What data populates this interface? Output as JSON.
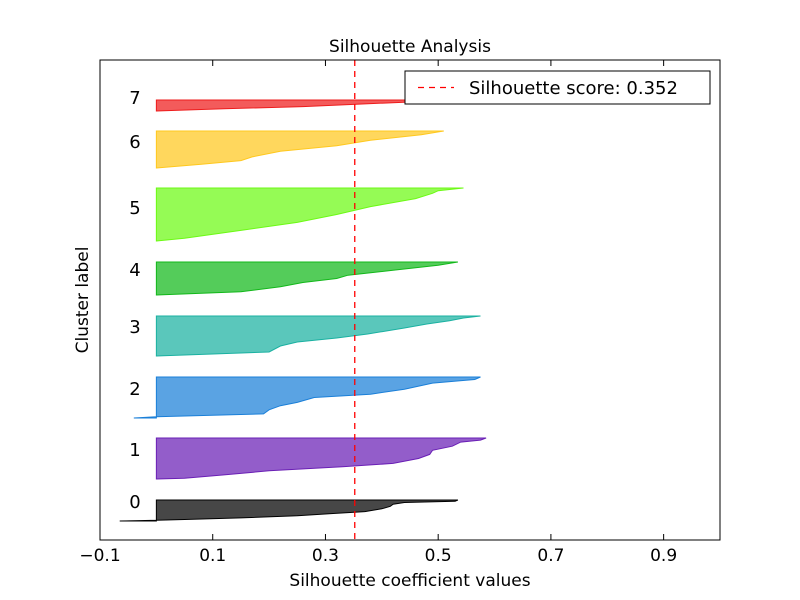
{
  "chart_data": {
    "type": "area",
    "title": "Silhouette Analysis",
    "xlabel": "Silhouette coefficient values",
    "ylabel": "Cluster label",
    "xlim": [
      -0.1,
      1.0
    ],
    "xticks": [
      -0.1,
      0.1,
      0.3,
      0.5,
      0.7,
      0.9
    ],
    "xtick_labels": [
      "−0.1",
      "0.1",
      "0.3",
      "0.5",
      "0.7",
      "0.9"
    ],
    "grid": false,
    "legend_position": "top-right",
    "silhouette_score": 0.352,
    "score_line": {
      "label": "Silhouette score: 0.352",
      "color": "#ff0000",
      "style": "dashed"
    },
    "clusters": [
      {
        "label": "0",
        "color": "#000000",
        "values_desc": [
          [
            0.0,
            0.535
          ],
          [
            0.06,
            0.53
          ],
          [
            0.12,
            0.44
          ],
          [
            0.2,
            0.42
          ],
          [
            0.3,
            0.415
          ],
          [
            0.42,
            0.4
          ],
          [
            0.55,
            0.37
          ],
          [
            0.65,
            0.31
          ],
          [
            0.75,
            0.25
          ],
          [
            0.85,
            0.15
          ],
          [
            0.93,
            0.05
          ],
          [
            0.96,
            0.0
          ],
          [
            0.98,
            -0.03
          ],
          [
            1.0,
            -0.065
          ]
        ]
      },
      {
        "label": "1",
        "color": "#6a1fb5",
        "values_desc": [
          [
            0.0,
            0.585
          ],
          [
            0.05,
            0.575
          ],
          [
            0.1,
            0.54
          ],
          [
            0.2,
            0.525
          ],
          [
            0.3,
            0.49
          ],
          [
            0.4,
            0.485
          ],
          [
            0.5,
            0.465
          ],
          [
            0.62,
            0.42
          ],
          [
            0.7,
            0.33
          ],
          [
            0.8,
            0.2
          ],
          [
            0.9,
            0.12
          ],
          [
            0.98,
            0.05
          ],
          [
            1.0,
            0.0
          ]
        ]
      },
      {
        "label": "2",
        "color": "#1a7fd8",
        "values_desc": [
          [
            0.0,
            0.575
          ],
          [
            0.06,
            0.565
          ],
          [
            0.15,
            0.49
          ],
          [
            0.3,
            0.44
          ],
          [
            0.42,
            0.38
          ],
          [
            0.5,
            0.28
          ],
          [
            0.62,
            0.25
          ],
          [
            0.7,
            0.22
          ],
          [
            0.8,
            0.2
          ],
          [
            0.9,
            0.19
          ],
          [
            0.97,
            0.0
          ],
          [
            1.0,
            -0.04
          ]
        ]
      },
      {
        "label": "3",
        "color": "#1ab1a1",
        "values_desc": [
          [
            0.0,
            0.575
          ],
          [
            0.05,
            0.545
          ],
          [
            0.12,
            0.52
          ],
          [
            0.2,
            0.48
          ],
          [
            0.3,
            0.44
          ],
          [
            0.45,
            0.375
          ],
          [
            0.55,
            0.32
          ],
          [
            0.65,
            0.25
          ],
          [
            0.75,
            0.22
          ],
          [
            0.9,
            0.2
          ],
          [
            1.0,
            0.0
          ]
        ]
      },
      {
        "label": "4",
        "color": "#12b81a",
        "values_desc": [
          [
            0.0,
            0.535
          ],
          [
            0.1,
            0.5
          ],
          [
            0.25,
            0.42
          ],
          [
            0.4,
            0.34
          ],
          [
            0.5,
            0.32
          ],
          [
            0.62,
            0.26
          ],
          [
            0.75,
            0.22
          ],
          [
            0.9,
            0.15
          ],
          [
            1.0,
            0.0
          ]
        ]
      },
      {
        "label": "5",
        "color": "#6cfa14",
        "values_desc": [
          [
            0.0,
            0.545
          ],
          [
            0.05,
            0.5
          ],
          [
            0.1,
            0.49
          ],
          [
            0.2,
            0.46
          ],
          [
            0.35,
            0.38
          ],
          [
            0.5,
            0.32
          ],
          [
            0.65,
            0.25
          ],
          [
            0.8,
            0.15
          ],
          [
            0.95,
            0.05
          ],
          [
            1.0,
            0.0
          ]
        ]
      },
      {
        "label": "6",
        "color": "#ffc81e",
        "values_desc": [
          [
            0.0,
            0.51
          ],
          [
            0.1,
            0.47
          ],
          [
            0.25,
            0.38
          ],
          [
            0.4,
            0.32
          ],
          [
            0.55,
            0.22
          ],
          [
            0.7,
            0.17
          ],
          [
            0.8,
            0.15
          ],
          [
            0.9,
            0.08
          ],
          [
            1.0,
            0.0
          ]
        ]
      },
      {
        "label": "7",
        "color": "#ee1c1c",
        "values_desc": [
          [
            0.0,
            0.52
          ],
          [
            0.2,
            0.44
          ],
          [
            0.4,
            0.35
          ],
          [
            0.6,
            0.26
          ],
          [
            0.8,
            0.12
          ],
          [
            1.0,
            0.0
          ]
        ]
      }
    ]
  }
}
